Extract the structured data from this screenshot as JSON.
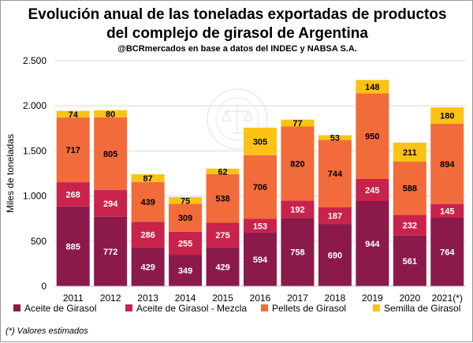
{
  "title_line1": "Evolución anual de las toneladas exportadas de productos",
  "title_line2": "del complejo de girasol de Argentina",
  "subtitle": "@BCRmercados  en base a datos del INDEC y NABSA S.A.",
  "footnote": "(*) Valores estimados",
  "watermark_text": "BOLSA DE COMERCIO DE ROSARIO",
  "chart_data": {
    "type": "bar",
    "stacked": true,
    "ylabel": "Miles de toneladas",
    "ylim": [
      0,
      2500
    ],
    "yticks": [
      0,
      500,
      1000,
      1500,
      2000,
      2500
    ],
    "ytick_labels": [
      "0",
      "500",
      "1.000",
      "1.500",
      "2.000",
      "2.500"
    ],
    "grid": true,
    "legend_position": "bottom",
    "categories": [
      "2011",
      "2012",
      "2013",
      "2014",
      "2015",
      "2016",
      "2017",
      "2018",
      "2019",
      "2020",
      "2021(*)"
    ],
    "series": [
      {
        "name": "Aceite de Girasol",
        "color": "#8b1a4a",
        "label_color": "#ffffff",
        "values": [
          885,
          772,
          429,
          349,
          429,
          594,
          758,
          690,
          944,
          561,
          764
        ]
      },
      {
        "name": "Aceite de Girasol - Mezcla",
        "color": "#c8234b",
        "label_color": "#ffffff",
        "values": [
          268,
          294,
          286,
          255,
          275,
          153,
          192,
          187,
          245,
          232,
          145
        ]
      },
      {
        "name": "Pellets de Girasol",
        "color": "#f26b3a",
        "label_color": "#000000",
        "values": [
          717,
          805,
          439,
          309,
          538,
          706,
          820,
          744,
          950,
          588,
          894
        ]
      },
      {
        "name": "Semilla de Girasol",
        "color": "#fcc214",
        "label_color": "#000000",
        "values": [
          74,
          80,
          87,
          75,
          62,
          305,
          77,
          53,
          148,
          211,
          180
        ]
      }
    ]
  }
}
